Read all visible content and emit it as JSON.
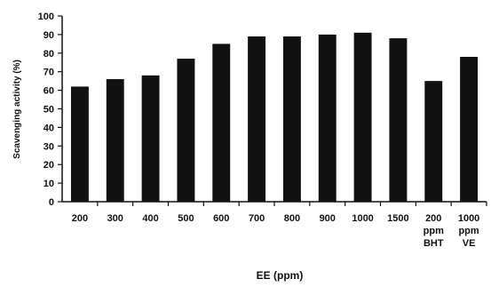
{
  "chart_data": {
    "type": "bar",
    "categories": [
      [
        "200"
      ],
      [
        "300"
      ],
      [
        "400"
      ],
      [
        "500"
      ],
      [
        "600"
      ],
      [
        "700"
      ],
      [
        "800"
      ],
      [
        "900"
      ],
      [
        "1000"
      ],
      [
        "1500"
      ],
      [
        "200",
        "ppm",
        "BHT"
      ],
      [
        "1000",
        "ppm",
        "VE"
      ]
    ],
    "values": [
      62,
      66,
      68,
      77,
      85,
      89,
      89,
      90,
      91,
      88,
      65,
      78
    ],
    "xlabel": "EE (ppm)",
    "ylabel": "Scavenging activity (%)",
    "ylim": [
      0,
      100
    ],
    "yticks": [
      "0",
      "10",
      "20",
      "30",
      "40",
      "50",
      "60",
      "70",
      "80",
      "90",
      "100"
    ],
    "grid": false,
    "bar_color": "#111111"
  }
}
